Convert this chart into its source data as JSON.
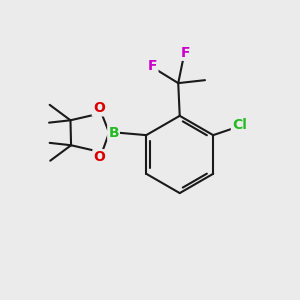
{
  "background_color": "#ebebeb",
  "bond_color": "#1a1a1a",
  "bond_width": 1.5,
  "atoms": {
    "B": {
      "color": "#22bb22",
      "fontsize": 10,
      "fontweight": "bold"
    },
    "O": {
      "color": "#dd0000",
      "fontsize": 10,
      "fontweight": "bold"
    },
    "Cl": {
      "color": "#22bb22",
      "fontsize": 10,
      "fontweight": "bold"
    },
    "F": {
      "color": "#cc00cc",
      "fontsize": 10,
      "fontweight": "bold"
    }
  },
  "figsize": [
    3.0,
    3.0
  ],
  "dpi": 100
}
